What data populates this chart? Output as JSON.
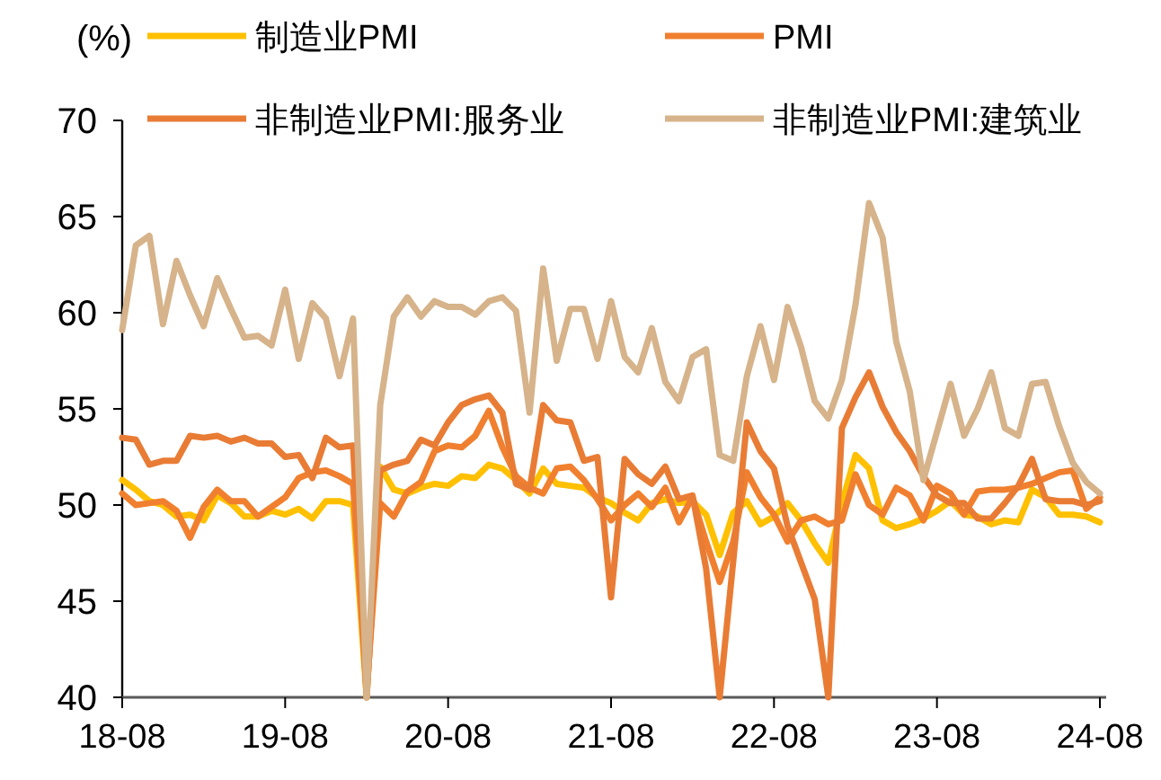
{
  "chart_data": {
    "type": "line",
    "ylabel": "(%)",
    "legend": "top",
    "categories": [
      "18-08",
      null,
      null,
      null,
      null,
      null,
      null,
      null,
      null,
      null,
      null,
      null,
      "19-08",
      null,
      null,
      null,
      null,
      null,
      null,
      null,
      null,
      null,
      null,
      null,
      "20-08",
      null,
      null,
      null,
      null,
      null,
      null,
      null,
      null,
      null,
      null,
      null,
      "21-08",
      null,
      null,
      null,
      null,
      null,
      null,
      null,
      null,
      null,
      null,
      null,
      "22-08",
      null,
      null,
      null,
      null,
      null,
      null,
      null,
      null,
      null,
      null,
      null,
      "23-08",
      null,
      null,
      null,
      null,
      null,
      null,
      null,
      null,
      null,
      null,
      null,
      "24-08"
    ],
    "ylim": [
      40,
      70
    ],
    "yticks": [
      40,
      45,
      50,
      55,
      60,
      65,
      70
    ],
    "series": [
      {
        "name": "制造业PMI",
        "color": "#ffc000",
        "values": [
          51.3,
          50.8,
          50.2,
          50.0,
          49.4,
          49.5,
          49.2,
          50.5,
          50.1,
          49.4,
          49.4,
          49.7,
          49.5,
          49.8,
          49.3,
          50.2,
          50.2,
          50.0,
          40,
          52.0,
          50.8,
          50.6,
          50.9,
          51.1,
          51.0,
          51.5,
          51.4,
          52.1,
          51.9,
          51.3,
          50.6,
          51.9,
          51.1,
          51.0,
          50.9,
          50.4,
          50.1,
          49.6,
          49.2,
          50.1,
          50.3,
          50.1,
          50.2,
          49.5,
          47.4,
          49.6,
          50.2,
          49.0,
          49.4,
          50.1,
          49.2,
          48.0,
          47.0,
          50.1,
          52.6,
          51.9,
          49.2,
          48.8,
          49.0,
          49.3,
          49.7,
          50.2,
          49.5,
          49.4,
          49.0,
          49.2,
          49.1,
          50.8,
          50.4,
          49.5,
          49.5,
          49.4,
          49.1
        ]
      },
      {
        "name": "PMI",
        "color": "#f0802f",
        "values": [
          50.6,
          50.0,
          50.1,
          50.2,
          49.7,
          48.3,
          49.9,
          50.8,
          50.2,
          50.2,
          49.4,
          49.9,
          50.4,
          51.4,
          51.7,
          51.8,
          51.5,
          51.1,
          40.3,
          50.1,
          49.4,
          50.7,
          51.2,
          52.8,
          53.1,
          53.0,
          53.6,
          54.9,
          53.0,
          51.5,
          50.9,
          50.6,
          51.9,
          52.0,
          51.3,
          50.3,
          49.2,
          50.0,
          50.6,
          49.9,
          50.9,
          49.1,
          50.4,
          48.1,
          46.0,
          48.1,
          51.7,
          50.4,
          49.5,
          48.1,
          49.2,
          49.4,
          49.0,
          49.2,
          51.6,
          50.0,
          49.5,
          50.9,
          50.5,
          49.2,
          51.0,
          50.6,
          49.5,
          50.7,
          50.8,
          50.8,
          50.9,
          51.1,
          51.4,
          51.7,
          51.8,
          49.8,
          50.4
        ]
      },
      {
        "name": "非制造业PMI:服务业",
        "color": "#e97c35",
        "values": [
          53.5,
          53.4,
          52.1,
          52.3,
          52.3,
          53.6,
          53.5,
          53.6,
          53.3,
          53.5,
          53.2,
          53.2,
          52.5,
          52.6,
          51.4,
          53.5,
          53.0,
          53.1,
          40,
          51.8,
          52.1,
          52.3,
          53.4,
          53.1,
          54.3,
          55.2,
          55.5,
          55.7,
          54.8,
          51.1,
          50.8,
          55.2,
          54.4,
          54.3,
          52.3,
          52.5,
          45.2,
          52.4,
          51.6,
          51.1,
          52.0,
          50.3,
          50.5,
          46.7,
          40.0,
          47.1,
          54.3,
          52.8,
          51.9,
          48.9,
          47.0,
          45.1,
          40,
          54.0,
          55.6,
          56.9,
          55.1,
          53.8,
          52.8,
          51.5,
          50.5,
          50.1,
          50.1,
          49.3,
          49.3,
          50.1,
          51.0,
          52.4,
          50.3,
          50.2,
          50.2,
          50.0,
          50.2
        ]
      },
      {
        "name": "非制造业PMI:建筑业",
        "color": "#d6b38a",
        "values": [
          59.1,
          63.5,
          64.0,
          59.4,
          62.7,
          60.9,
          59.3,
          61.8,
          60.2,
          58.7,
          58.8,
          58.3,
          61.2,
          57.6,
          60.5,
          59.7,
          56.7,
          59.7,
          40,
          55.2,
          59.8,
          60.8,
          59.8,
          60.6,
          60.3,
          60.3,
          59.9,
          60.6,
          60.8,
          60.1,
          54.8,
          62.3,
          57.5,
          60.2,
          60.2,
          57.6,
          60.6,
          57.7,
          56.9,
          59.2,
          56.4,
          55.4,
          57.7,
          58.1,
          52.6,
          52.3,
          56.7,
          59.3,
          56.5,
          60.3,
          58.2,
          55.4,
          54.5,
          56.5,
          60.4,
          65.7,
          63.9,
          58.5,
          55.9,
          51.3,
          53.8,
          56.3,
          53.6,
          55.0,
          56.9,
          54.0,
          53.6,
          56.3,
          56.4,
          54.1,
          52.2,
          51.2,
          50.6
        ]
      }
    ]
  }
}
